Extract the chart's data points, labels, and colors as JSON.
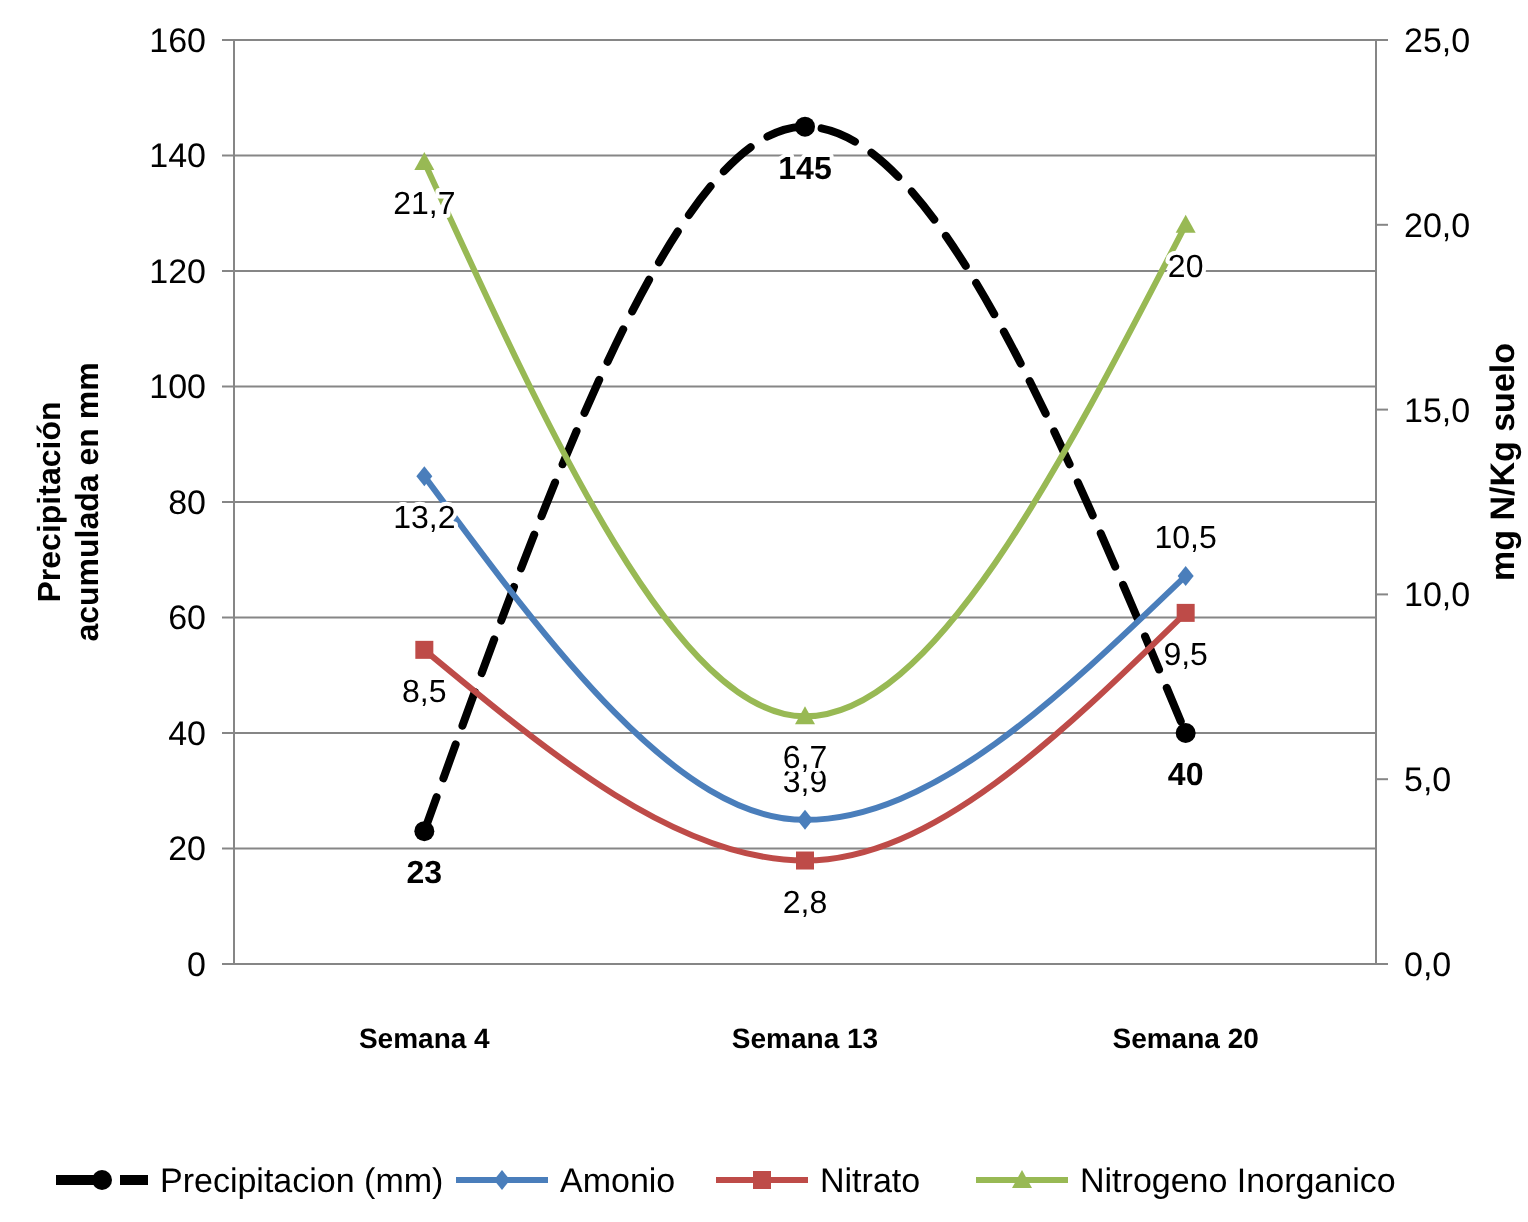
{
  "chart_data": {
    "type": "line",
    "categories": [
      "Semana 4",
      "Semana 13",
      "Semana 20"
    ],
    "ylabel": "Precipitación\nacumulada en mm",
    "y2label": "mg N/Kg suelo",
    "ylim": [
      0,
      160
    ],
    "yticks": [
      0,
      20,
      40,
      60,
      80,
      100,
      120,
      140,
      160
    ],
    "y2lim": [
      0,
      25
    ],
    "y2ticks": [
      {
        "value": 0,
        "label": "0,0"
      },
      {
        "value": 5,
        "label": "5,0"
      },
      {
        "value": 10,
        "label": "10,0"
      },
      {
        "value": 15,
        "label": "15,0"
      },
      {
        "value": 20,
        "label": "20,0"
      },
      {
        "value": 25,
        "label": "25,0"
      }
    ],
    "grid": "y",
    "legend": "bottom",
    "series": [
      {
        "name": "Precipitacion (mm)",
        "color": "#000000",
        "values": [
          23,
          145,
          40
        ],
        "value_labels": [
          "23",
          "145",
          "40"
        ],
        "marker": "circle",
        "line_style": "dashed"
      },
      {
        "name": "Amonio",
        "color": "#4a7ebb",
        "values": [
          13.2,
          3.9,
          10.5
        ],
        "value_labels": [
          "13,2",
          "3,9",
          "10,5"
        ],
        "axis": "y2",
        "marker": "diamond",
        "line_style": "solid"
      },
      {
        "name": "Nitrato",
        "color": "#be4b48",
        "values": [
          8.5,
          2.8,
          9.5
        ],
        "value_labels": [
          "8,5",
          "2,8",
          "9,5"
        ],
        "axis": "y2",
        "marker": "square",
        "line_style": "solid"
      },
      {
        "name": "Nitrogeno Inorganico",
        "color": "#98b954",
        "values": [
          21.7,
          6.7,
          20
        ],
        "value_labels": [
          "21,7",
          "6,7",
          "20"
        ],
        "axis": "y2",
        "marker": "triangle",
        "line_style": "solid"
      }
    ]
  }
}
